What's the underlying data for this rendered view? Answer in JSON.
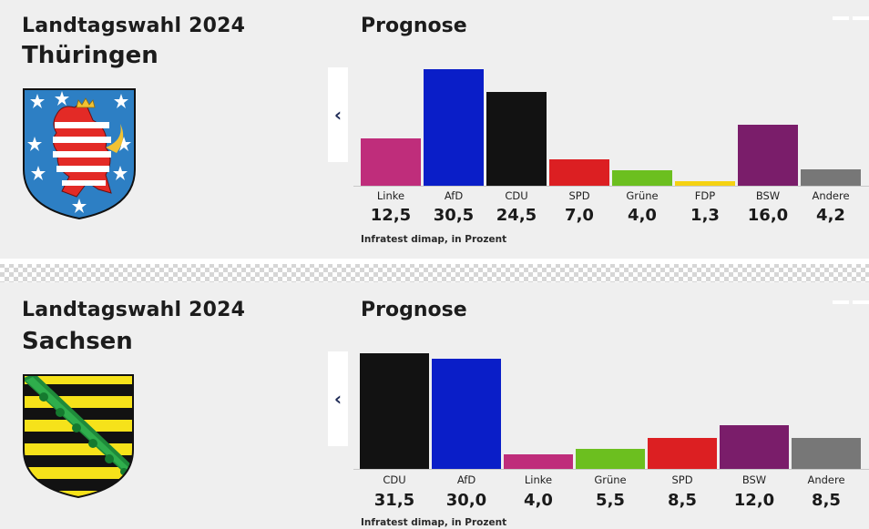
{
  "colors": {
    "Linke": "#bf2d7b",
    "AfD": "#0a1ec8",
    "CDU": "#121212",
    "SPD": "#dc1f22",
    "Grüne": "#6cbf1f",
    "FDP": "#f5d212",
    "BSW": "#7a1d6a",
    "Andere": "#777777"
  },
  "panels": [
    {
      "title": "Landtagswahl 2024",
      "state": "Thüringen",
      "prognose": "Prognose",
      "nav_icon": "chevron-left-icon",
      "source": "Infratest dimap, in Prozent"
    },
    {
      "title": "Landtagswahl 2024",
      "state": "Sachsen",
      "prognose": "Prognose",
      "nav_icon": "chevron-left-icon",
      "source": "Infratest dimap, in Prozent"
    }
  ],
  "chart_data": [
    {
      "type": "bar",
      "categories": [
        "Linke",
        "AfD",
        "CDU",
        "SPD",
        "Grüne",
        "FDP",
        "BSW",
        "Andere"
      ],
      "values": [
        12.5,
        30.5,
        24.5,
        7.0,
        4.0,
        1.3,
        16.0,
        4.2
      ],
      "value_labels": [
        "12,5",
        "30,5",
        "24,5",
        "7,0",
        "4,0",
        "1,3",
        "16,0",
        "4,2"
      ],
      "title": "Prognose",
      "xlabel": "",
      "ylabel": "",
      "ylim": [
        0,
        30.5
      ],
      "grid": false,
      "legend": "none"
    },
    {
      "type": "bar",
      "categories": [
        "CDU",
        "AfD",
        "Linke",
        "Grüne",
        "SPD",
        "BSW",
        "Andere"
      ],
      "values": [
        31.5,
        30.0,
        4.0,
        5.5,
        8.5,
        12.0,
        8.5
      ],
      "value_labels": [
        "31,5",
        "30,0",
        "4,0",
        "5,5",
        "8,5",
        "12,0",
        "8,5"
      ],
      "title": "Prognose",
      "xlabel": "",
      "ylabel": "",
      "ylim": [
        0,
        31.5
      ],
      "grid": false,
      "legend": "none"
    }
  ]
}
